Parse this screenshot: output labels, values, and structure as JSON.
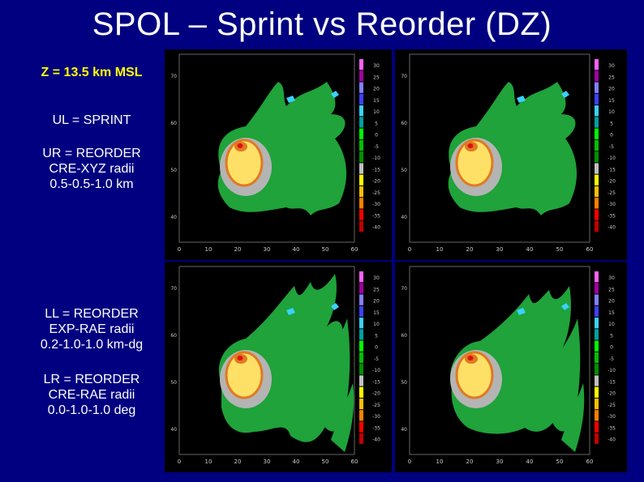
{
  "slide": {
    "title": "SPOL – Sprint vs Reorder (DZ)",
    "height_label": "Z = 13.5 km MSL",
    "ul_label": "UL = SPRINT",
    "ur_lines": [
      "UR = REORDER",
      "CRE-XYZ radii",
      "0.5-0.5-1.0 km"
    ],
    "ll_lines": [
      "LL = REORDER",
      "EXP-RAE radii",
      "0.2-1.0-1.0 km-dg"
    ],
    "lr_lines": [
      "LR = REORDER",
      "CRE-RAE radii",
      "0.0-1.0-1.0 deg"
    ]
  },
  "colors": {
    "background": "#000080",
    "highlight": "#ffff00",
    "panel_bg": "#000000",
    "echo_green": "#1fa33a",
    "echo_gray": "#b4b4b4",
    "echo_yellow": "#ffe066",
    "echo_orange": "#e07a22",
    "echo_red": "#e01010",
    "echo_cyan": "#3ad0ff"
  },
  "panels": [
    {
      "id": "ul",
      "variant": "sprint"
    },
    {
      "id": "ur",
      "variant": "cre-xyz"
    },
    {
      "id": "ll",
      "variant": "exp-rae"
    },
    {
      "id": "lr",
      "variant": "cre-rae"
    }
  ],
  "colorbar": {
    "colors": [
      "#ff60ff",
      "#a000a0",
      "#8080ff",
      "#4040ff",
      "#3ad0ff",
      "#00a0a0",
      "#00ff00",
      "#00c000",
      "#009000",
      "#c0c0c0",
      "#ffff00",
      "#ffc000",
      "#ff8000",
      "#ff0000",
      "#c00000"
    ],
    "labels": [
      "30",
      "25",
      "20",
      "15",
      "10",
      "5",
      "0",
      "-5",
      "-10",
      "-15",
      "-20",
      "-25",
      "-30",
      "-35",
      "-40"
    ]
  },
  "x_ticks": [
    "0",
    "10",
    "20",
    "30",
    "40",
    "50",
    "60"
  ],
  "y_ticks": [
    "40",
    "50",
    "60",
    "70"
  ]
}
